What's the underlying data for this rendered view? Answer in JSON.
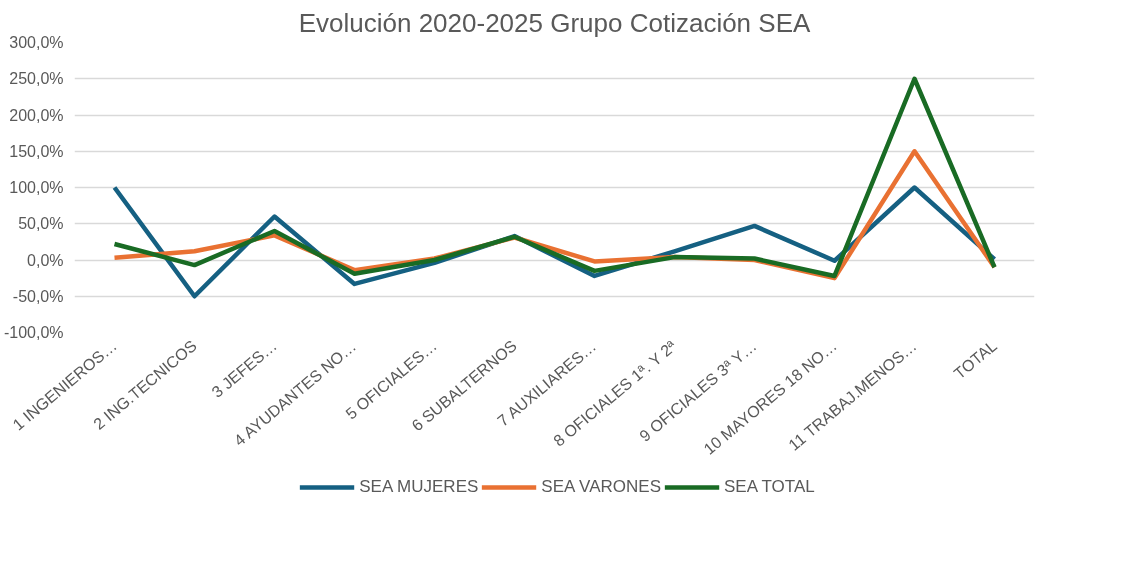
{
  "chart_data": {
    "type": "line",
    "title": "Evolución 2020-2025 Grupo Cotización SEA",
    "categories": [
      "1 INGENIEROS…",
      "2 ING.TECNICOS",
      "3 JEFES…",
      "4 AYUDANTES NO…",
      "5 OFICIALES…",
      "6 SUBALTERNOS",
      "7 AUXILIARES…",
      "8 OFICIALES 1ª. Y 2ª",
      "9 OFICIALES 3ª Y…",
      "10 MAYORES 18 NO…",
      "11 TRABAJ.MENOS…",
      "TOTAL"
    ],
    "series": [
      {
        "name": "SEA MUJERES",
        "color": "#156082",
        "values": [
          100,
          -50,
          60,
          -33,
          -4,
          33,
          -22,
          12,
          47,
          -1,
          100,
          1
        ]
      },
      {
        "name": "SEA VARONES",
        "color": "#e97132",
        "values": [
          3,
          12,
          34,
          -14,
          2,
          31,
          -2,
          4,
          0,
          -25,
          150,
          -10
        ]
      },
      {
        "name": "SEA TOTAL",
        "color": "#196b24",
        "values": [
          22,
          -7,
          40,
          -19,
          0,
          32,
          -15,
          4,
          2,
          -22,
          250,
          -10
        ]
      }
    ],
    "ylim": [
      -100,
      300
    ],
    "yticks": [
      {
        "value": -100,
        "label": "-100,0%"
      },
      {
        "value": -50,
        "label": "-50,0%"
      },
      {
        "value": 0,
        "label": "0,0%"
      },
      {
        "value": 50,
        "label": "50,0%"
      },
      {
        "value": 100,
        "label": "100,0%"
      },
      {
        "value": 150,
        "label": "150,0%"
      },
      {
        "value": 200,
        "label": "200,0%"
      },
      {
        "value": 250,
        "label": "250,0%"
      },
      {
        "value": 300,
        "label": "300,0%"
      }
    ],
    "grid": "y",
    "legend": "bottom",
    "marker": "none",
    "line_style": "solid"
  }
}
